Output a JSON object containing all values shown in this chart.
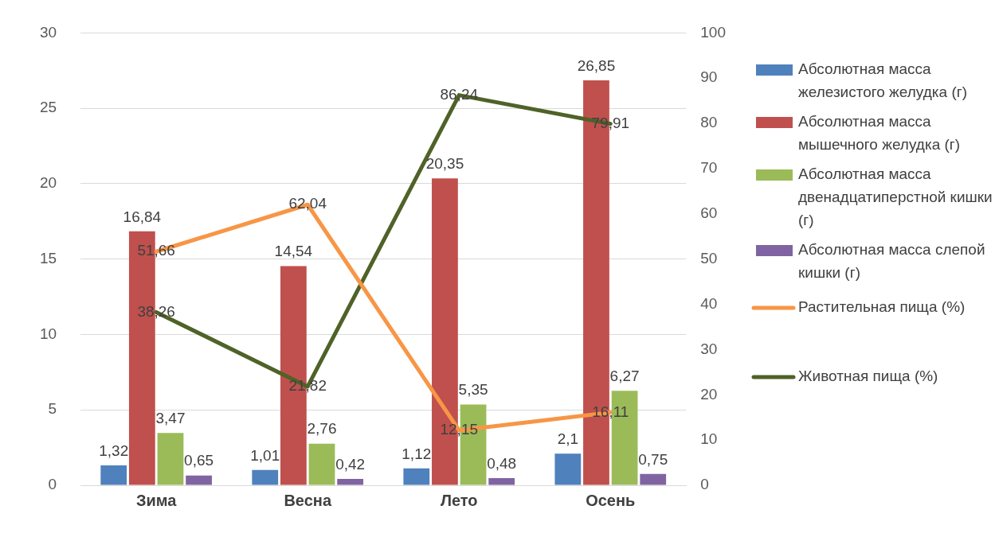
{
  "chart_data": {
    "type": "bar",
    "categories": [
      "Зима",
      "Весна",
      "Лето",
      "Осень"
    ],
    "series": [
      {
        "name": "Абсолютная масса железистого желудка (г)",
        "color": "#4f81bd",
        "values": [
          1.32,
          1.01,
          1.12,
          2.1
        ],
        "value_labels": [
          "1,32",
          "1,01",
          "1,12",
          "2,1"
        ]
      },
      {
        "name": "Абсолютная масса мышечного желудка (г)",
        "color": "#c0504d",
        "values": [
          16.84,
          14.54,
          20.35,
          26.85
        ],
        "value_labels": [
          "16,84",
          "14,54",
          "20,35",
          "26,85"
        ]
      },
      {
        "name": "Абсолютная масса двенадцатиперстной кишки (г)",
        "color": "#9bbb59",
        "values": [
          3.47,
          2.76,
          5.35,
          6.27
        ],
        "value_labels": [
          "3,47",
          "2,76",
          "5,35",
          "6,27"
        ]
      },
      {
        "name": "Абсолютная масса слепой кишки (г)",
        "color": "#8064a2",
        "values": [
          0.65,
          0.42,
          0.48,
          0.75
        ],
        "value_labels": [
          "0,65",
          "0,42",
          "0,48",
          "0,75"
        ]
      },
      {
        "name": "Растительная пища (%)",
        "type": "line",
        "axis": "y2",
        "color": "#f79646",
        "values": [
          51.66,
          62.04,
          12.15,
          16.11
        ],
        "value_labels": [
          "51,66",
          "62,04",
          "12,15",
          "16,11"
        ]
      },
      {
        "name": "Животная пища (%)",
        "type": "line",
        "axis": "y2",
        "color": "#4f6228",
        "values": [
          38.26,
          21.82,
          86.24,
          79.91
        ],
        "value_labels": [
          "38,26",
          "21,82",
          "86,24",
          "79,91"
        ]
      }
    ],
    "ylim": [
      0,
      30
    ],
    "yticks": [
      0,
      5,
      10,
      15,
      20,
      25,
      30
    ],
    "y2lim": [
      0,
      100
    ],
    "y2ticks": [
      0,
      10,
      20,
      30,
      40,
      50,
      60,
      70,
      80,
      90,
      100
    ],
    "grid": "y",
    "legend": "right",
    "marker": "none"
  }
}
